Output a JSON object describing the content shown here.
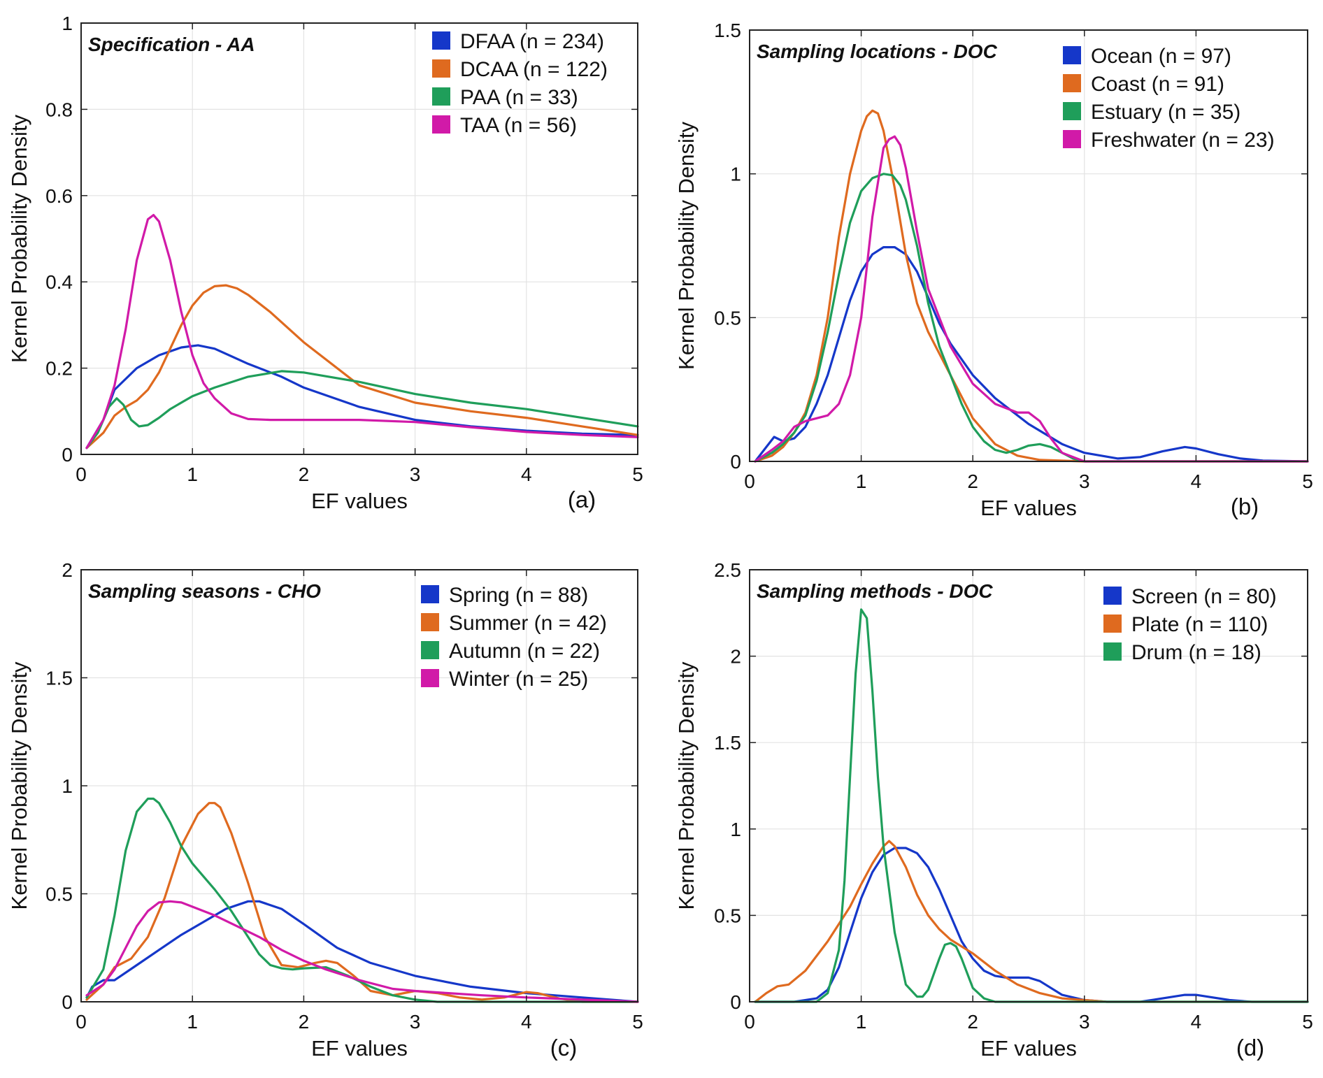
{
  "chart_data": [
    {
      "type": "line",
      "panel_label": "(a)",
      "title": "Specification - AA",
      "xlabel": "EF values",
      "ylabel": "Kernel Probability Density",
      "xlim": [
        0,
        5
      ],
      "ylim": [
        0,
        1
      ],
      "xticks": [
        0,
        1,
        2,
        3,
        4,
        5
      ],
      "xtick_labels": [
        "0",
        "1",
        "2",
        "3",
        "4",
        "5"
      ],
      "yticks": [
        0,
        0.2,
        0.4,
        0.6,
        0.8,
        1
      ],
      "ytick_labels": [
        "0",
        "0.2",
        "0.4",
        "0.6",
        "0.8",
        "1"
      ],
      "grid": true,
      "legend_position": "top-right",
      "series": [
        {
          "name": "DFAA (n = 234)",
          "color": "#1537c9",
          "x": [
            0.05,
            0.2,
            0.3,
            0.5,
            0.7,
            0.9,
            1.05,
            1.2,
            1.5,
            1.8,
            2.0,
            2.5,
            3.0,
            3.5,
            4.0,
            4.5,
            5.0
          ],
          "y": [
            0.015,
            0.08,
            0.15,
            0.2,
            0.23,
            0.248,
            0.253,
            0.245,
            0.21,
            0.18,
            0.155,
            0.11,
            0.08,
            0.065,
            0.055,
            0.048,
            0.045
          ]
        },
        {
          "name": "DCAA (n = 122)",
          "color": "#df6a1f",
          "x": [
            0.05,
            0.2,
            0.3,
            0.4,
            0.5,
            0.6,
            0.7,
            0.8,
            0.9,
            1.0,
            1.1,
            1.2,
            1.3,
            1.4,
            1.5,
            1.7,
            2.0,
            2.5,
            3.0,
            3.5,
            4.0,
            4.5,
            5.0
          ],
          "y": [
            0.015,
            0.05,
            0.09,
            0.11,
            0.125,
            0.15,
            0.19,
            0.245,
            0.3,
            0.345,
            0.375,
            0.39,
            0.392,
            0.385,
            0.37,
            0.33,
            0.26,
            0.16,
            0.12,
            0.1,
            0.085,
            0.065,
            0.045
          ]
        },
        {
          "name": "PAA (n = 33)",
          "color": "#1f9e5a",
          "x": [
            0.05,
            0.15,
            0.25,
            0.32,
            0.38,
            0.45,
            0.52,
            0.6,
            0.7,
            0.8,
            1.0,
            1.2,
            1.5,
            1.8,
            2.0,
            2.5,
            3.0,
            3.5,
            4.0,
            4.5,
            5.0
          ],
          "y": [
            0.015,
            0.05,
            0.11,
            0.13,
            0.115,
            0.08,
            0.065,
            0.068,
            0.085,
            0.105,
            0.135,
            0.155,
            0.18,
            0.193,
            0.19,
            0.168,
            0.14,
            0.12,
            0.105,
            0.085,
            0.065
          ]
        },
        {
          "name": "TAA (n = 56)",
          "color": "#d11aa8",
          "x": [
            0.05,
            0.2,
            0.3,
            0.4,
            0.5,
            0.6,
            0.65,
            0.7,
            0.8,
            0.9,
            1.0,
            1.1,
            1.2,
            1.35,
            1.5,
            1.7,
            2.0,
            2.5,
            3.0,
            3.5,
            4.0,
            4.5,
            5.0
          ],
          "y": [
            0.015,
            0.08,
            0.16,
            0.29,
            0.45,
            0.545,
            0.555,
            0.54,
            0.45,
            0.33,
            0.23,
            0.165,
            0.13,
            0.095,
            0.082,
            0.08,
            0.08,
            0.08,
            0.075,
            0.063,
            0.052,
            0.045,
            0.04
          ]
        }
      ]
    },
    {
      "type": "line",
      "panel_label": "(b)",
      "title": "Sampling locations - DOC",
      "xlabel": "EF values",
      "ylabel": "Kernel Probability Density",
      "xlim": [
        0,
        5
      ],
      "ylim": [
        0,
        1.5
      ],
      "xticks": [
        0,
        1,
        2,
        3,
        4,
        5
      ],
      "xtick_labels": [
        "0",
        "1",
        "2",
        "3",
        "4",
        "5"
      ],
      "yticks": [
        0,
        0.5,
        1,
        1.5
      ],
      "ytick_labels": [
        "0",
        "0.5",
        "1",
        "1.5"
      ],
      "grid": true,
      "legend_position": "top-right",
      "series": [
        {
          "name": "Ocean (n = 97)",
          "color": "#1537c9",
          "x": [
            0.05,
            0.15,
            0.22,
            0.3,
            0.4,
            0.5,
            0.6,
            0.7,
            0.8,
            0.9,
            1.0,
            1.1,
            1.2,
            1.3,
            1.4,
            1.5,
            1.6,
            1.7,
            1.8,
            2.0,
            2.2,
            2.5,
            2.8,
            3.0,
            3.3,
            3.5,
            3.7,
            3.9,
            4.0,
            4.2,
            4.4,
            4.6,
            5.0
          ],
          "y": [
            0.0,
            0.05,
            0.085,
            0.07,
            0.08,
            0.12,
            0.2,
            0.3,
            0.43,
            0.56,
            0.66,
            0.72,
            0.745,
            0.745,
            0.72,
            0.66,
            0.57,
            0.48,
            0.41,
            0.3,
            0.22,
            0.13,
            0.06,
            0.03,
            0.01,
            0.015,
            0.035,
            0.05,
            0.045,
            0.025,
            0.01,
            0.003,
            0.0
          ]
        },
        {
          "name": "Coast (n = 91)",
          "color": "#df6a1f",
          "x": [
            0.05,
            0.2,
            0.3,
            0.4,
            0.5,
            0.6,
            0.7,
            0.8,
            0.9,
            1.0,
            1.05,
            1.1,
            1.15,
            1.2,
            1.3,
            1.4,
            1.5,
            1.6,
            1.8,
            2.0,
            2.2,
            2.4,
            2.6,
            3.0,
            5.0
          ],
          "y": [
            0.0,
            0.02,
            0.05,
            0.1,
            0.17,
            0.3,
            0.5,
            0.78,
            1.0,
            1.15,
            1.2,
            1.22,
            1.21,
            1.15,
            0.95,
            0.72,
            0.55,
            0.45,
            0.3,
            0.15,
            0.06,
            0.02,
            0.005,
            0.0,
            0.0
          ]
        },
        {
          "name": "Estuary (n = 35)",
          "color": "#1f9e5a",
          "x": [
            0.05,
            0.2,
            0.3,
            0.4,
            0.5,
            0.6,
            0.7,
            0.8,
            0.9,
            1.0,
            1.1,
            1.2,
            1.28,
            1.35,
            1.4,
            1.5,
            1.6,
            1.7,
            1.8,
            1.9,
            2.0,
            2.1,
            2.2,
            2.3,
            2.4,
            2.5,
            2.6,
            2.7,
            2.8,
            2.9,
            3.0,
            5.0
          ],
          "y": [
            0.0,
            0.03,
            0.06,
            0.1,
            0.16,
            0.28,
            0.45,
            0.65,
            0.83,
            0.94,
            0.985,
            1.0,
            0.995,
            0.96,
            0.91,
            0.75,
            0.55,
            0.4,
            0.3,
            0.2,
            0.12,
            0.07,
            0.04,
            0.03,
            0.04,
            0.055,
            0.06,
            0.05,
            0.03,
            0.01,
            0.0,
            0.0
          ]
        },
        {
          "name": "Freshwater (n = 23)",
          "color": "#d11aa8",
          "x": [
            0.05,
            0.2,
            0.3,
            0.4,
            0.5,
            0.6,
            0.7,
            0.8,
            0.9,
            1.0,
            1.1,
            1.2,
            1.25,
            1.3,
            1.35,
            1.4,
            1.5,
            1.6,
            1.8,
            2.0,
            2.2,
            2.4,
            2.5,
            2.6,
            2.7,
            2.8,
            3.0,
            5.0
          ],
          "y": [
            0.0,
            0.04,
            0.07,
            0.12,
            0.14,
            0.15,
            0.16,
            0.2,
            0.3,
            0.5,
            0.85,
            1.09,
            1.12,
            1.13,
            1.1,
            1.02,
            0.8,
            0.6,
            0.4,
            0.27,
            0.2,
            0.17,
            0.17,
            0.14,
            0.08,
            0.03,
            0.0,
            0.0
          ]
        }
      ]
    },
    {
      "type": "line",
      "panel_label": "(c)",
      "title": "Sampling seasons - CHO",
      "xlabel": "EF values",
      "ylabel": "Kernel Probability Density",
      "xlim": [
        0,
        5
      ],
      "ylim": [
        0,
        2
      ],
      "xticks": [
        0,
        1,
        2,
        3,
        4,
        5
      ],
      "xtick_labels": [
        "0",
        "1",
        "2",
        "3",
        "4",
        "5"
      ],
      "yticks": [
        0,
        0.5,
        1,
        1.5,
        2
      ],
      "ytick_labels": [
        "0",
        "0.5",
        "1",
        "1.5",
        "2"
      ],
      "grid": true,
      "legend_position": "top-right",
      "series": [
        {
          "name": "Spring (n = 88)",
          "color": "#1537c9",
          "x": [
            0.05,
            0.1,
            0.2,
            0.3,
            0.5,
            0.7,
            0.9,
            1.1,
            1.3,
            1.5,
            1.6,
            1.8,
            2.0,
            2.3,
            2.6,
            3.0,
            3.5,
            4.0,
            4.5,
            5.0
          ],
          "y": [
            0.02,
            0.07,
            0.1,
            0.1,
            0.17,
            0.24,
            0.31,
            0.37,
            0.43,
            0.465,
            0.465,
            0.43,
            0.36,
            0.25,
            0.18,
            0.12,
            0.07,
            0.04,
            0.02,
            0.0
          ]
        },
        {
          "name": "Summer (n = 42)",
          "color": "#df6a1f",
          "x": [
            0.05,
            0.2,
            0.3,
            0.45,
            0.6,
            0.75,
            0.9,
            1.05,
            1.15,
            1.2,
            1.25,
            1.35,
            1.5,
            1.65,
            1.8,
            1.95,
            2.1,
            2.2,
            2.3,
            2.45,
            2.6,
            2.8,
            3.0,
            3.2,
            3.4,
            3.6,
            3.8,
            4.0,
            4.1,
            4.3,
            4.5,
            5.0
          ],
          "y": [
            0.01,
            0.08,
            0.16,
            0.2,
            0.3,
            0.48,
            0.72,
            0.87,
            0.92,
            0.92,
            0.9,
            0.78,
            0.55,
            0.3,
            0.17,
            0.16,
            0.18,
            0.19,
            0.18,
            0.12,
            0.05,
            0.03,
            0.05,
            0.04,
            0.02,
            0.01,
            0.02,
            0.045,
            0.04,
            0.015,
            0.0,
            0.0
          ]
        },
        {
          "name": "Autumn (n = 22)",
          "color": "#1f9e5a",
          "x": [
            0.05,
            0.2,
            0.3,
            0.4,
            0.5,
            0.6,
            0.65,
            0.7,
            0.8,
            0.9,
            1.0,
            1.1,
            1.2,
            1.35,
            1.5,
            1.6,
            1.7,
            1.8,
            1.9,
            2.0,
            2.2,
            2.4,
            2.6,
            2.8,
            3.0,
            3.2,
            5.0
          ],
          "y": [
            0.02,
            0.15,
            0.4,
            0.7,
            0.88,
            0.94,
            0.94,
            0.92,
            0.83,
            0.72,
            0.64,
            0.58,
            0.52,
            0.42,
            0.3,
            0.22,
            0.17,
            0.155,
            0.15,
            0.155,
            0.16,
            0.12,
            0.07,
            0.03,
            0.01,
            0.0,
            0.0
          ]
        },
        {
          "name": "Winter (n = 25)",
          "color": "#d11aa8",
          "x": [
            0.05,
            0.2,
            0.3,
            0.4,
            0.5,
            0.6,
            0.7,
            0.8,
            0.9,
            1.0,
            1.2,
            1.4,
            1.6,
            1.8,
            2.0,
            2.2,
            2.5,
            2.8,
            3.0,
            3.3,
            3.6,
            4.0,
            4.5,
            5.0
          ],
          "y": [
            0.03,
            0.08,
            0.15,
            0.25,
            0.35,
            0.42,
            0.46,
            0.465,
            0.46,
            0.44,
            0.4,
            0.35,
            0.3,
            0.24,
            0.19,
            0.15,
            0.1,
            0.06,
            0.05,
            0.04,
            0.03,
            0.02,
            0.01,
            0.0
          ]
        }
      ]
    },
    {
      "type": "line",
      "panel_label": "(d)",
      "title": "Sampling methods - DOC",
      "xlabel": "EF values",
      "ylabel": "Kernel Probability Density",
      "xlim": [
        0,
        5
      ],
      "ylim": [
        0,
        2.5
      ],
      "xticks": [
        0,
        1,
        2,
        3,
        4,
        5
      ],
      "xtick_labels": [
        "0",
        "1",
        "2",
        "3",
        "4",
        "5"
      ],
      "yticks": [
        0,
        0.5,
        1,
        1.5,
        2,
        2.5
      ],
      "ytick_labels": [
        "0",
        "0.5",
        "1",
        "1.5",
        "2",
        "2.5"
      ],
      "grid": true,
      "legend_position": "top-right",
      "series": [
        {
          "name": "Screen (n = 80)",
          "color": "#1537c9",
          "x": [
            0.05,
            0.4,
            0.6,
            0.7,
            0.8,
            0.9,
            1.0,
            1.1,
            1.2,
            1.3,
            1.4,
            1.5,
            1.6,
            1.7,
            1.8,
            1.9,
            2.0,
            2.1,
            2.2,
            2.3,
            2.4,
            2.5,
            2.6,
            2.7,
            2.8,
            3.0,
            3.2,
            3.5,
            3.8,
            3.9,
            4.0,
            4.1,
            4.3,
            4.5,
            5.0
          ],
          "y": [
            0.0,
            0.0,
            0.02,
            0.07,
            0.2,
            0.4,
            0.6,
            0.75,
            0.85,
            0.89,
            0.89,
            0.86,
            0.78,
            0.65,
            0.5,
            0.35,
            0.25,
            0.18,
            0.15,
            0.14,
            0.14,
            0.14,
            0.12,
            0.08,
            0.04,
            0.01,
            0.0,
            0.0,
            0.03,
            0.04,
            0.04,
            0.03,
            0.01,
            0.0,
            0.0
          ]
        },
        {
          "name": "Plate (n = 110)",
          "color": "#df6a1f",
          "x": [
            0.05,
            0.15,
            0.25,
            0.35,
            0.5,
            0.7,
            0.9,
            1.0,
            1.1,
            1.2,
            1.25,
            1.3,
            1.4,
            1.5,
            1.6,
            1.7,
            1.8,
            2.0,
            2.2,
            2.4,
            2.6,
            2.8,
            3.0,
            3.2,
            3.5,
            4.0,
            5.0
          ],
          "y": [
            0.0,
            0.05,
            0.09,
            0.1,
            0.18,
            0.35,
            0.55,
            0.68,
            0.8,
            0.9,
            0.93,
            0.9,
            0.78,
            0.62,
            0.5,
            0.42,
            0.36,
            0.28,
            0.18,
            0.1,
            0.05,
            0.02,
            0.01,
            0.0,
            0.0,
            0.0,
            0.0
          ]
        },
        {
          "name": "Drum (n = 18)",
          "color": "#1f9e5a",
          "x": [
            0.05,
            0.5,
            0.6,
            0.7,
            0.8,
            0.85,
            0.9,
            0.95,
            1.0,
            1.05,
            1.1,
            1.15,
            1.2,
            1.3,
            1.4,
            1.5,
            1.55,
            1.6,
            1.7,
            1.75,
            1.8,
            1.85,
            1.9,
            2.0,
            2.1,
            2.2,
            2.3,
            5.0
          ],
          "y": [
            0.0,
            0.0,
            0.0,
            0.05,
            0.3,
            0.7,
            1.3,
            1.9,
            2.27,
            2.22,
            1.8,
            1.3,
            0.9,
            0.4,
            0.1,
            0.03,
            0.03,
            0.07,
            0.25,
            0.33,
            0.34,
            0.32,
            0.25,
            0.08,
            0.02,
            0.0,
            0.0,
            0.0
          ]
        }
      ]
    }
  ]
}
